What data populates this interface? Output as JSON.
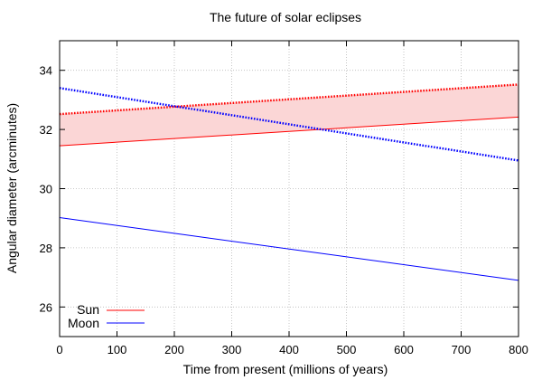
{
  "chart_data": {
    "type": "line",
    "title": "The future of solar eclipses",
    "xlabel": "Time from present (millions of years)",
    "ylabel": "Angular diameter (arcminutes)",
    "xlim": [
      0,
      800
    ],
    "ylim": [
      25,
      35
    ],
    "xticks": [
      0,
      100,
      200,
      300,
      400,
      500,
      600,
      700,
      800
    ],
    "yticks": [
      26,
      28,
      30,
      32,
      34
    ],
    "grid": true,
    "legend_position": "bottom-left",
    "colors": {
      "sun": "#ff0000",
      "moon": "#0000ff",
      "band_fill": "#fbd6d6"
    },
    "series": [
      {
        "name": "Sun",
        "x": [
          0,
          800
        ],
        "y": [
          31.45,
          32.42
        ],
        "style": "solid",
        "color": "#ff0000"
      },
      {
        "x": [
          0,
          800
        ],
        "y": [
          32.52,
          33.52
        ],
        "style": "dotted",
        "color": "#ff0000"
      },
      {
        "name": "Moon",
        "x": [
          0,
          800
        ],
        "y": [
          29.02,
          26.9
        ],
        "style": "solid",
        "color": "#0000ff"
      },
      {
        "x": [
          0,
          800
        ],
        "y": [
          33.4,
          30.95
        ],
        "style": "dotted",
        "color": "#0000ff"
      }
    ],
    "band": {
      "x": [
        0,
        800
      ],
      "lower": [
        31.45,
        32.42
      ],
      "upper": [
        32.52,
        33.52
      ],
      "color": "#fbd6d6"
    },
    "legend": [
      {
        "label": "Sun",
        "color": "#ff0000"
      },
      {
        "label": "Moon",
        "color": "#0000ff"
      }
    ]
  }
}
